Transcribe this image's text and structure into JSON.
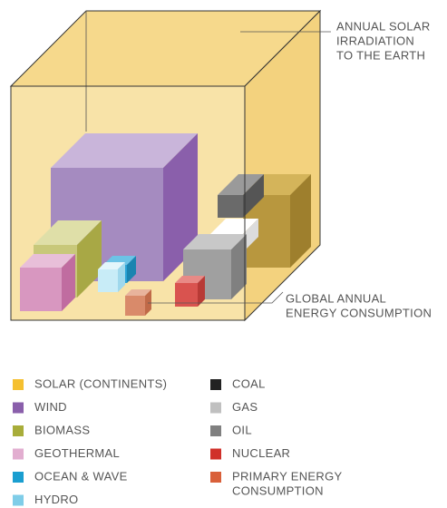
{
  "annotations": {
    "solar": [
      "ANNUAL SOLAR",
      "IRRADIATION",
      "TO THE EARTH"
    ],
    "consumption": [
      "GLOBAL ANNUAL",
      "ENERGY CONSUMPTION"
    ]
  },
  "legend": [
    {
      "label": [
        "SOLAR (CONTINENTS)"
      ],
      "color": "#f5c030"
    },
    {
      "label": [
        "WIND"
      ],
      "color": "#8a5fab"
    },
    {
      "label": [
        "BIOMASS"
      ],
      "color": "#a8ad3a"
    },
    {
      "label": [
        "GEOTHERMAL"
      ],
      "color": "#e2aed0"
    },
    {
      "label": [
        "OCEAN & WAVE"
      ],
      "color": "#1a9ed0"
    },
    {
      "label": [
        "HYDRO"
      ],
      "color": "#7fcde8"
    },
    {
      "label": [
        "COAL"
      ],
      "color": "#222222"
    },
    {
      "label": [
        "GAS"
      ],
      "color": "#c0c0c0"
    },
    {
      "label": [
        "OIL"
      ],
      "color": "#808080"
    },
    {
      "label": [
        "NUCLEAR"
      ],
      "color": "#d0302a"
    },
    {
      "label": [
        "PRIMARY ENERGY",
        "CONSUMPTION"
      ],
      "color": "#d9603a"
    }
  ]
}
